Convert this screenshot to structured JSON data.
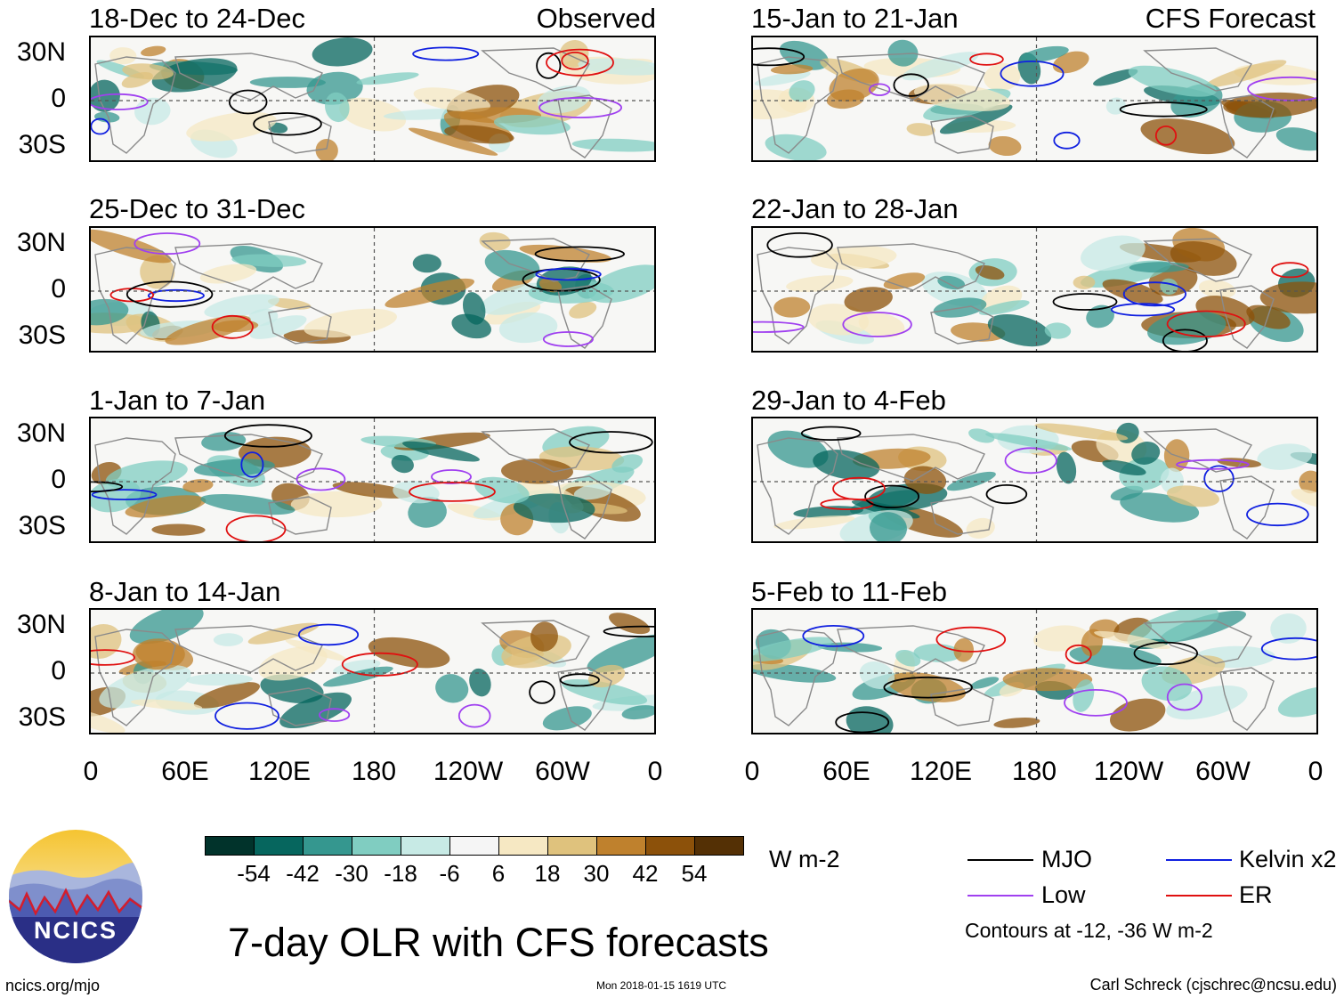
{
  "panels_left": [
    {
      "title": "18-Dec to 24-Dec",
      "label": "Observed"
    },
    {
      "title": "25-Dec to 31-Dec",
      "label": ""
    },
    {
      "title": "1-Jan to 7-Jan",
      "label": ""
    },
    {
      "title": "8-Jan to 14-Jan",
      "label": ""
    }
  ],
  "panels_right": [
    {
      "title": "15-Jan to 21-Jan",
      "label": "CFS Forecast"
    },
    {
      "title": "22-Jan to 28-Jan",
      "label": ""
    },
    {
      "title": "29-Jan to 4-Feb",
      "label": ""
    },
    {
      "title": "5-Feb to 11-Feb",
      "label": ""
    }
  ],
  "y_axis": [
    "30N",
    "0",
    "30S"
  ],
  "x_axis": [
    "0",
    "60E",
    "120E",
    "180",
    "120W",
    "60W",
    "0"
  ],
  "colorbar": {
    "colors": [
      "#01332b",
      "#06665e",
      "#35978f",
      "#80cdc1",
      "#c7eae5",
      "#f5f5f5",
      "#f6e8c3",
      "#dfc27d",
      "#bf812d",
      "#8c510a",
      "#543005"
    ],
    "ticks": [
      "-54",
      "-42",
      "-30",
      "-18",
      "-6",
      "6",
      "18",
      "30",
      "42",
      "54"
    ],
    "units": "W m-2"
  },
  "title": "7-day OLR with CFS forecasts",
  "legend": [
    {
      "name": "MJO",
      "color": "#000000"
    },
    {
      "name": "Kelvin x2",
      "color": "#1020e0"
    },
    {
      "name": "Low",
      "color": "#a040f0"
    },
    {
      "name": "ER",
      "color": "#e01010"
    }
  ],
  "contours_note": "Contours at -12, -36 W m-2",
  "logo_text": "NCICS",
  "footer": {
    "website": "ncics.org/mjo",
    "timestamp": "Mon 2018-01-15 1619 UTC",
    "author": "Carl Schreck (cjschrec@ncsu.edu)"
  }
}
